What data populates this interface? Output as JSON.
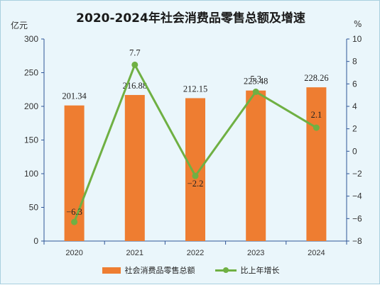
{
  "title": "2020-2024年社会消费品零售总额及增速",
  "left_unit": "亿元",
  "right_unit": "%",
  "colors": {
    "bar": "#ee7d31",
    "line": "#6fb043",
    "axis": "#2f5597",
    "background": "#eaf6fb"
  },
  "chart_data": {
    "type": "bar",
    "categories": [
      "2020",
      "2021",
      "2022",
      "2023",
      "2024"
    ],
    "series": [
      {
        "name": "社会消费品零售总额",
        "type": "bar",
        "axis": "left",
        "values": [
          201.34,
          216.88,
          212.15,
          223.48,
          228.26
        ],
        "labels": [
          "201.34",
          "216.88",
          "212.15",
          "223.48",
          "228.26"
        ]
      },
      {
        "name": "比上年增长",
        "type": "line",
        "axis": "right",
        "values": [
          -6.3,
          7.7,
          -2.2,
          5.3,
          2.1
        ],
        "labels": [
          "-6.3",
          "7.7",
          "-2.2",
          "5.3",
          "2.1"
        ]
      }
    ],
    "left_axis": {
      "min": 0,
      "max": 300,
      "ticks": [
        "0",
        "50",
        "100",
        "150",
        "200",
        "250",
        "300"
      ]
    },
    "right_axis": {
      "min": -8,
      "max": 10,
      "ticks": [
        "-8",
        "-6",
        "-4",
        "-2",
        "0",
        "2",
        "4",
        "6",
        "8",
        "10"
      ]
    },
    "grid": false,
    "legend_position": "bottom"
  }
}
